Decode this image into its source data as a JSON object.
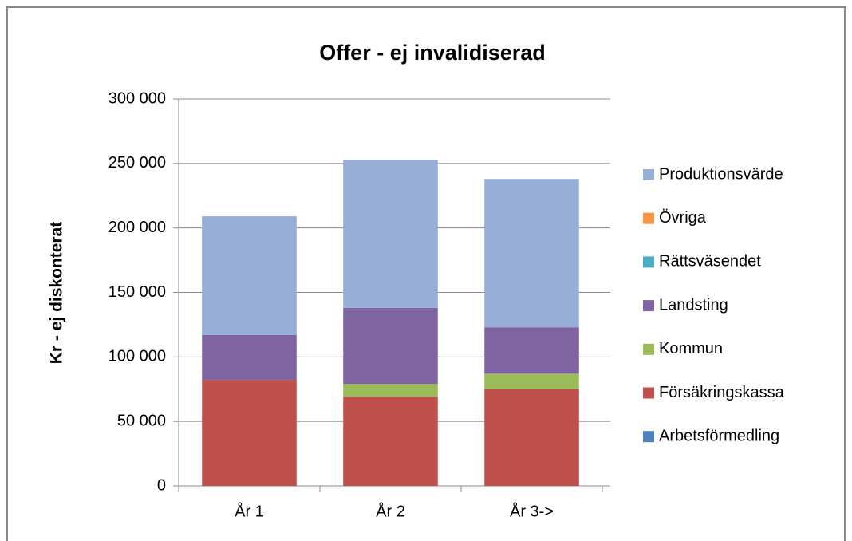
{
  "chart_data": {
    "type": "stacked_bar",
    "title": "Offer - ej invalidiserad",
    "y_label": "Kr - ej diskonterat",
    "categories": [
      "År 1",
      "År 2",
      "År 3->"
    ],
    "series": [
      {
        "name": "Arbetsförmedling",
        "color": "#4f81bd",
        "values": [
          0,
          0,
          0
        ]
      },
      {
        "name": "Försäkringskassa",
        "color": "#c0504d",
        "values": [
          82000,
          69000,
          75000
        ]
      },
      {
        "name": "Kommun",
        "color": "#9bbb59",
        "values": [
          0,
          10000,
          12000
        ]
      },
      {
        "name": "Landsting",
        "color": "#8064a2",
        "values": [
          35000,
          59000,
          36000
        ]
      },
      {
        "name": "Rättsväsendet",
        "color": "#4bacc6",
        "values": [
          0,
          0,
          0
        ]
      },
      {
        "name": "Övriga",
        "color": "#f79646",
        "values": [
          0,
          0,
          0
        ]
      },
      {
        "name": "Produktionsvärde",
        "color": "#97aed7",
        "values": [
          92000,
          115000,
          115000
        ]
      }
    ],
    "ylim": [
      0,
      300000
    ],
    "yticks": [
      0,
      {
        "value": 50000,
        "label": "50 000"
      },
      {
        "value": 100000,
        "label": "100 000"
      },
      {
        "value": 150000,
        "label": "150 000"
      },
      {
        "value": 200000,
        "label": "200 000"
      },
      {
        "value": 250000,
        "label": "250 000"
      },
      {
        "value": 300000,
        "label": "300 000"
      }
    ],
    "grid": true,
    "legend": "right"
  }
}
